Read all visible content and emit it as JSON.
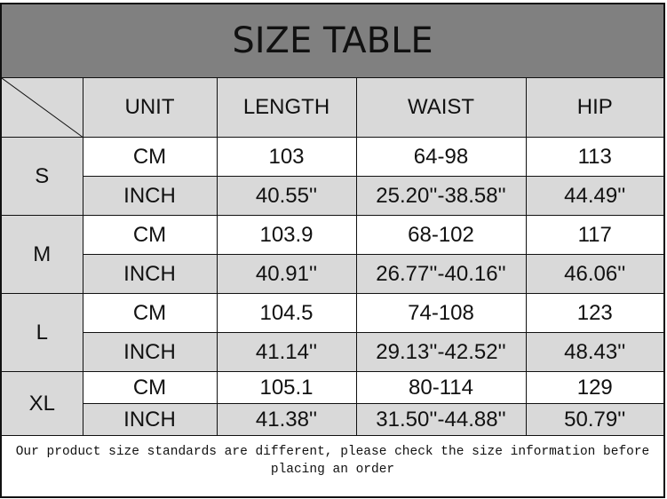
{
  "title": "SIZE TABLE",
  "headers": [
    "UNIT",
    "LENGTH",
    "WAIST",
    "HIP"
  ],
  "sizes": [
    {
      "size": "S",
      "rows": [
        [
          "CM",
          "103",
          "64-98",
          "113"
        ],
        [
          "INCH",
          "40.55''",
          "25.20''-38.58''",
          "44.49''"
        ]
      ]
    },
    {
      "size": "M",
      "rows": [
        [
          "CM",
          "103.9",
          "68-102",
          "117"
        ],
        [
          "INCH",
          "40.91''",
          "26.77''-40.16''",
          "46.06''"
        ]
      ]
    },
    {
      "size": "L",
      "rows": [
        [
          "CM",
          "104.5",
          "74-108",
          "123"
        ],
        [
          "INCH",
          "41.14''",
          "29.13''-42.52''",
          "48.43''"
        ]
      ]
    },
    {
      "size": "XL",
      "rows": [
        [
          "CM",
          "105.1",
          "80-114",
          "129"
        ],
        [
          "INCH",
          "41.38''",
          "31.50''-44.88''",
          "50.79''"
        ]
      ]
    }
  ],
  "note": "Our product size standards are different, please check the size information before placing an order",
  "colors": {
    "title_bg": "#808080",
    "shaded_cell": "#d9d9d9"
  }
}
